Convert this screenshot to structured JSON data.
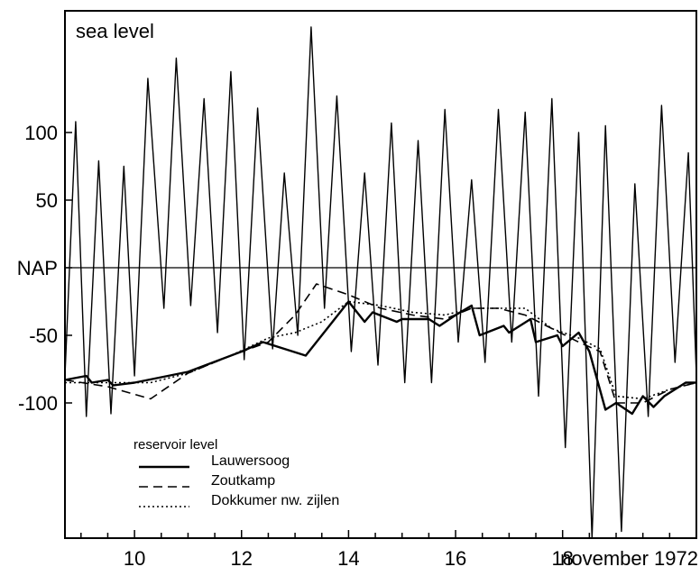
{
  "chart_data": {
    "type": "line",
    "title": "",
    "corner_label": "sea level",
    "ylabel": "",
    "xlabel": "november 1972",
    "y_ticks": [
      {
        "value": 100,
        "label": "100"
      },
      {
        "value": 50,
        "label": "50"
      },
      {
        "value": 0,
        "label": "NAP"
      },
      {
        "value": -50,
        "label": "-50"
      },
      {
        "value": -100,
        "label": "-100"
      }
    ],
    "x_ticks": [
      {
        "value": 10,
        "label": "10"
      },
      {
        "value": 12,
        "label": "12"
      },
      {
        "value": 14,
        "label": "14"
      },
      {
        "value": 16,
        "label": "16"
      },
      {
        "value": 18,
        "label": "18"
      }
    ],
    "x_last_label": "november 1972",
    "xlim": [
      8.7,
      20.5
    ],
    "ylim": [
      -200,
      190
    ],
    "grid": false,
    "reference_line": 0,
    "legend": {
      "title": "reservoir level",
      "position": "bottom-left",
      "entries": [
        {
          "series": "Lauwersoog",
          "label": "Lauwersoog"
        },
        {
          "series": "Zoutkamp",
          "label": "Zoutkamp"
        },
        {
          "series": "Dokkumer nw. zijlen",
          "label": "Dokkumer nw. zijlen"
        }
      ]
    },
    "series": [
      {
        "name": "sea level",
        "style": "solid-thin",
        "x": [
          8.7,
          8.9,
          9.1,
          9.33,
          9.56,
          9.8,
          10.0,
          10.25,
          10.55,
          10.78,
          11.05,
          11.3,
          11.55,
          11.8,
          12.05,
          12.3,
          12.58,
          12.8,
          13.05,
          13.3,
          13.55,
          13.78,
          14.05,
          14.3,
          14.55,
          14.8,
          15.05,
          15.3,
          15.55,
          15.8,
          16.05,
          16.3,
          16.55,
          16.8,
          17.05,
          17.3,
          17.55,
          17.8,
          18.05,
          18.3,
          18.55,
          18.8,
          19.1,
          19.35,
          19.6,
          19.85,
          20.1,
          20.35,
          20.5
        ],
        "y": [
          -80,
          108,
          -110,
          79,
          -108,
          75,
          -80,
          140,
          -30,
          155,
          -28,
          125,
          -48,
          145,
          -68,
          118,
          -60,
          70,
          -50,
          178,
          -30,
          127,
          -62,
          70,
          -72,
          107,
          -85,
          94,
          -85,
          117,
          -55,
          65,
          -70,
          117,
          -55,
          115,
          -95,
          125,
          -133,
          100,
          -200,
          105,
          -195,
          62,
          -110,
          120,
          -70,
          85,
          -80
        ],
        "values": [
          -80,
          108,
          -110,
          79,
          -108,
          75,
          -80,
          140,
          -30,
          155,
          -28,
          125,
          -48,
          145,
          -68,
          118,
          -60,
          70,
          -50,
          178,
          -30,
          127,
          -62,
          70,
          -72,
          107,
          -85,
          94,
          -85,
          117,
          -55,
          65,
          -70,
          117,
          -55,
          115,
          -95,
          125,
          -133,
          100,
          -200,
          105,
          -195,
          62,
          -110,
          120,
          -70,
          85,
          -80
        ]
      },
      {
        "name": "Lauwersoog",
        "style": "solid",
        "x": [
          8.7,
          9.1,
          9.2,
          9.5,
          9.6,
          10.0,
          11.0,
          12.0,
          12.4,
          12.8,
          13.2,
          13.6,
          14.0,
          14.3,
          14.45,
          14.9,
          15.0,
          15.5,
          15.7,
          16.0,
          16.3,
          16.45,
          16.9,
          17.0,
          17.4,
          17.5,
          17.9,
          18.0,
          18.3,
          18.5,
          18.8,
          19.0,
          19.3,
          19.5,
          19.7,
          19.9,
          20.3,
          20.5
        ],
        "y": [
          -83,
          -80,
          -85,
          -83,
          -87,
          -85,
          -77,
          -62,
          -55,
          -60,
          -65,
          -45,
          -25,
          -40,
          -33,
          -40,
          -38,
          -38,
          -43,
          -35,
          -28,
          -50,
          -43,
          -48,
          -38,
          -55,
          -50,
          -58,
          -48,
          -62,
          -105,
          -100,
          -108,
          -95,
          -103,
          -95,
          -85,
          -85
        ],
        "values": [
          -83,
          -80,
          -85,
          -83,
          -87,
          -85,
          -77,
          -62,
          -55,
          -60,
          -65,
          -45,
          -25,
          -40,
          -33,
          -40,
          -38,
          -38,
          -43,
          -35,
          -28,
          -50,
          -43,
          -48,
          -38,
          -55,
          -50,
          -58,
          -48,
          -62,
          -105,
          -100,
          -108,
          -95,
          -103,
          -95,
          -85,
          -85
        ]
      },
      {
        "name": "Zoutkamp",
        "style": "dashed",
        "x": [
          8.7,
          9.5,
          10.3,
          11.0,
          11.8,
          12.5,
          13.0,
          13.4,
          14.0,
          14.6,
          15.2,
          15.8,
          16.3,
          16.8,
          17.3,
          17.8,
          18.3,
          18.7,
          19.0,
          19.5,
          20.0,
          20.5
        ],
        "y": [
          -83,
          -88,
          -97,
          -78,
          -65,
          -55,
          -35,
          -12,
          -20,
          -30,
          -35,
          -38,
          -30,
          -30,
          -35,
          -45,
          -55,
          -62,
          -100,
          -100,
          -90,
          -85
        ],
        "values": [
          -83,
          -88,
          -97,
          -78,
          -65,
          -55,
          -35,
          -12,
          -20,
          -30,
          -35,
          -38,
          -30,
          -30,
          -35,
          -45,
          -55,
          -62,
          -100,
          -100,
          -90,
          -85
        ]
      },
      {
        "name": "Dokkumer nw. zijlen",
        "style": "dotted",
        "x": [
          8.7,
          9.5,
          10.3,
          11.0,
          11.8,
          12.5,
          13.0,
          13.5,
          14.0,
          14.6,
          15.2,
          15.8,
          16.3,
          16.8,
          17.3,
          17.8,
          18.3,
          18.7,
          19.0,
          19.5,
          20.0,
          20.5
        ],
        "y": [
          -85,
          -85,
          -85,
          -78,
          -65,
          -52,
          -48,
          -40,
          -25,
          -28,
          -33,
          -35,
          -30,
          -30,
          -30,
          -45,
          -52,
          -60,
          -95,
          -97,
          -90,
          -85
        ],
        "values": [
          -85,
          -85,
          -85,
          -78,
          -65,
          -52,
          -48,
          -40,
          -25,
          -28,
          -33,
          -35,
          -30,
          -30,
          -30,
          -45,
          -52,
          -60,
          -95,
          -97,
          -90,
          -85
        ]
      }
    ]
  }
}
